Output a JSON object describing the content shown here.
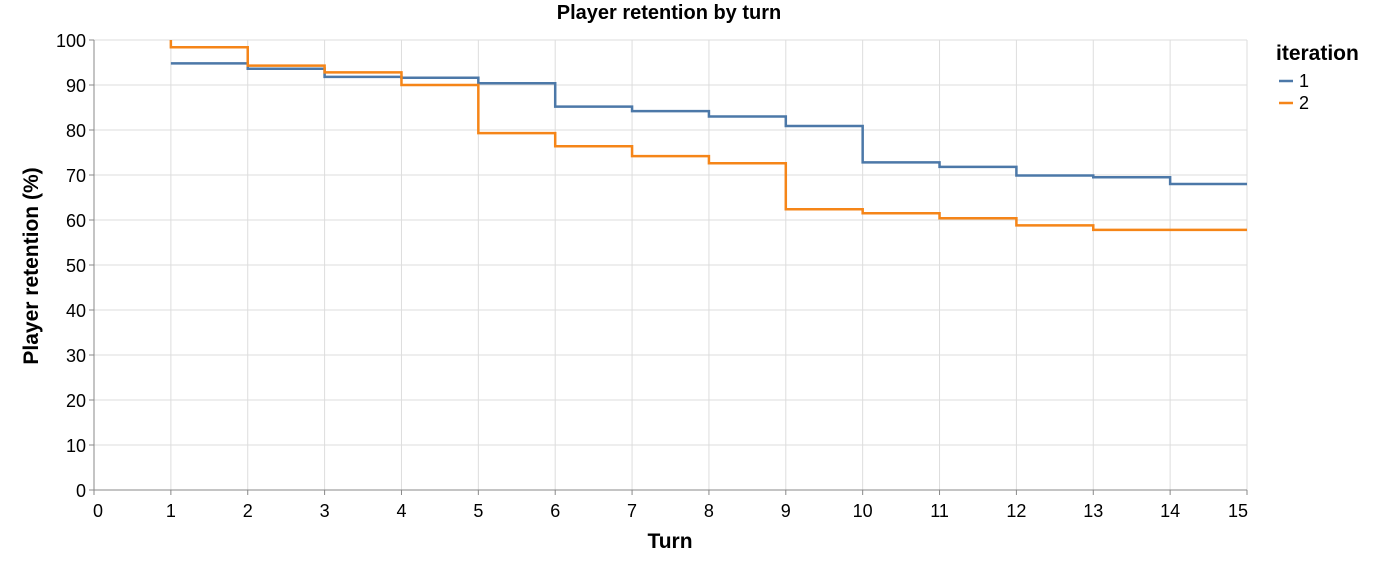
{
  "chart_data": {
    "type": "line",
    "interpolation": "step-after",
    "title": "Player retention by turn",
    "xlabel": "Turn",
    "ylabel": "Player retention (%)",
    "xlim": [
      0,
      15
    ],
    "ylim": [
      0,
      100
    ],
    "x_ticks": [
      0,
      1,
      2,
      3,
      4,
      5,
      6,
      7,
      8,
      9,
      10,
      11,
      12,
      13,
      14,
      15
    ],
    "y_ticks": [
      0,
      10,
      20,
      30,
      40,
      50,
      60,
      70,
      80,
      90,
      100
    ],
    "grid": true,
    "legend": {
      "title": "iteration",
      "placement": "top-right"
    },
    "x": [
      1,
      2,
      3,
      4,
      5,
      6,
      7,
      8,
      9,
      10,
      11,
      12,
      13,
      14,
      15
    ],
    "series": [
      {
        "name": "1",
        "color": "#4c78a8",
        "values": [
          94.8,
          93.6,
          91.8,
          91.6,
          90.4,
          85.2,
          84.2,
          83.0,
          80.9,
          72.8,
          71.8,
          69.9,
          69.5,
          68.0,
          68.0
        ]
      },
      {
        "name": "2",
        "color": "#f58518",
        "start": 100,
        "values": [
          98.4,
          94.3,
          92.8,
          90.0,
          79.3,
          76.4,
          74.2,
          72.6,
          62.4,
          61.5,
          60.4,
          58.8,
          57.8,
          57.8,
          57.8
        ]
      }
    ]
  }
}
